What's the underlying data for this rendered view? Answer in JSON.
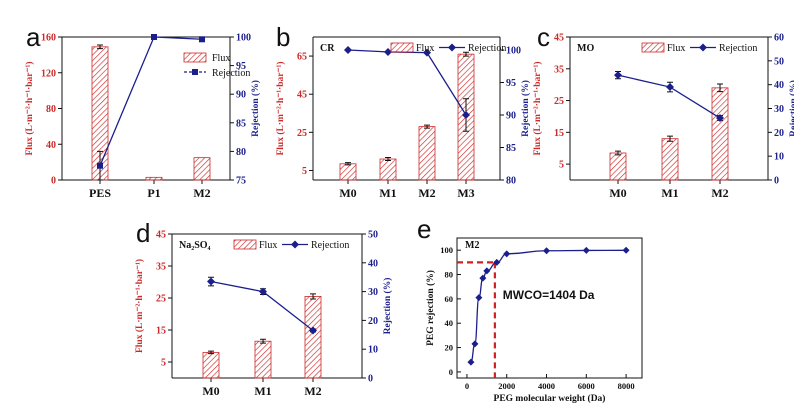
{
  "colors": {
    "flux": "#cc2a2a",
    "rejection": "#1b1f8c",
    "axis": "#111111",
    "guide": "#cc2222"
  },
  "chart_data": [
    {
      "panel": "a",
      "type": "bar+line",
      "tag": "",
      "categories": [
        "PES",
        "P1",
        "M2"
      ],
      "series": [
        {
          "name": "Flux",
          "axis": "left",
          "values": [
            149,
            3,
            25
          ],
          "errors": [
            2,
            0,
            0
          ]
        },
        {
          "name": "Rejection",
          "axis": "right",
          "values": [
            77.5,
            100,
            99.6
          ],
          "errors": [
            2.5,
            0,
            0
          ]
        }
      ],
      "ylabel_left": "Flux (L·m⁻²·h⁻¹·bar⁻¹)",
      "ylabel_right": "Rejection (%)",
      "ylim_left": [
        0,
        160
      ],
      "yticks_left": [
        "0",
        "40",
        "80",
        "120",
        "160"
      ],
      "ytick_values_left": [
        0,
        40,
        80,
        120,
        160
      ],
      "ylim_right": [
        75,
        100
      ],
      "yticks_right": [
        "75",
        "80",
        "85",
        "90",
        "95",
        "100"
      ],
      "ytick_values_right": [
        75,
        80,
        85,
        90,
        95,
        100
      ],
      "legend": {
        "flux": "Flux",
        "rejection": "Rejection"
      }
    },
    {
      "panel": "b",
      "type": "bar+line",
      "tag": "CR",
      "categories": [
        "M0",
        "M1",
        "M2",
        "M3"
      ],
      "series": [
        {
          "name": "Flux",
          "axis": "left",
          "values": [
            8.5,
            11,
            28,
            66
          ],
          "errors": [
            0.6,
            0.8,
            0.8,
            1.0
          ]
        },
        {
          "name": "Rejection",
          "axis": "right",
          "values": [
            100,
            99.7,
            99.6,
            90
          ],
          "errors": [
            0,
            0,
            0,
            2.5
          ]
        }
      ],
      "ylabel_left": "Flux (L·m⁻²·h⁻¹·bar⁻¹)",
      "ylabel_right": "Rejection (%)",
      "ylim_left": [
        0,
        75
      ],
      "yticks_left": [
        "5",
        "25",
        "45",
        "65"
      ],
      "ytick_values_left": [
        5,
        25,
        45,
        65
      ],
      "ylim_right": [
        80,
        102
      ],
      "yticks_right": [
        "80",
        "85",
        "90",
        "95",
        "100"
      ],
      "ytick_values_right": [
        80,
        85,
        90,
        95,
        100
      ],
      "legend": {
        "flux": "Flux",
        "rejection": "Rejection"
      }
    },
    {
      "panel": "c",
      "type": "bar+line",
      "tag": "MO",
      "categories": [
        "M0",
        "M1",
        "M2"
      ],
      "series": [
        {
          "name": "Flux",
          "axis": "left",
          "values": [
            8.5,
            13,
            29
          ],
          "errors": [
            0.6,
            0.8,
            1.2
          ]
        },
        {
          "name": "Rejection",
          "axis": "right",
          "values": [
            44,
            39,
            26
          ],
          "errors": [
            1.5,
            2,
            1
          ]
        }
      ],
      "ylabel_left": "Flux (L·m⁻²·h⁻¹·bar⁻¹)",
      "ylabel_right": "Rejection (%)",
      "ylim_left": [
        0,
        45
      ],
      "yticks_left": [
        "5",
        "15",
        "25",
        "35",
        "45"
      ],
      "ytick_values_left": [
        5,
        15,
        25,
        35,
        45
      ],
      "ylim_right": [
        0,
        60
      ],
      "yticks_right": [
        "0",
        "10",
        "20",
        "30",
        "40",
        "50",
        "60"
      ],
      "ytick_values_right": [
        0,
        10,
        20,
        30,
        40,
        50,
        60
      ],
      "legend": {
        "flux": "Flux",
        "rejection": "Rejection"
      }
    },
    {
      "panel": "d",
      "type": "bar+line",
      "tag": "Na₂SO₄",
      "categories": [
        "M0",
        "M1",
        "M2"
      ],
      "series": [
        {
          "name": "Flux",
          "axis": "left",
          "values": [
            8,
            11.5,
            25.5
          ],
          "errors": [
            0.4,
            0.6,
            0.8
          ]
        },
        {
          "name": "Rejection",
          "axis": "right",
          "values": [
            33.5,
            30,
            16.5
          ],
          "errors": [
            1.5,
            1,
            0.5
          ]
        }
      ],
      "ylabel_left": "Flux (L·m⁻²·h⁻¹·bar⁻¹)",
      "ylabel_right": "Rejection (%)",
      "ylim_left": [
        0,
        45
      ],
      "yticks_left": [
        "5",
        "15",
        "25",
        "35",
        "45"
      ],
      "ytick_values_left": [
        5,
        15,
        25,
        35,
        45
      ],
      "ylim_right": [
        0,
        50
      ],
      "yticks_right": [
        "0",
        "10",
        "20",
        "30",
        "40",
        "50"
      ],
      "ytick_values_right": [
        0,
        10,
        20,
        30,
        40,
        50
      ],
      "legend": {
        "flux": "Flux",
        "rejection": "Rejection"
      }
    },
    {
      "panel": "e",
      "type": "line",
      "tag": "M2",
      "series": [
        {
          "name": "PEG rejection",
          "x": [
            200,
            400,
            600,
            800,
            1000,
            1500,
            2000,
            4000,
            6000,
            8000
          ],
          "y": [
            8,
            23,
            61,
            77,
            83,
            90,
            97,
            99.5,
            99.8,
            99.9
          ]
        }
      ],
      "xlabel": "PEG molecular weight (Da)",
      "ylabel": "PEG rejection (%)",
      "xlim": [
        -500,
        8800
      ],
      "xticks": [
        "0",
        "2000",
        "4000",
        "6000",
        "8000"
      ],
      "xtick_values": [
        0,
        2000,
        4000,
        6000,
        8000
      ],
      "ylim": [
        -5,
        110
      ],
      "yticks": [
        "0",
        "20",
        "40",
        "60",
        "80",
        "100"
      ],
      "ytick_values": [
        0,
        20,
        40,
        60,
        80,
        100
      ],
      "annotation": "MWCO=1404 Da",
      "mwco_x": 1404,
      "mwco_y": 90
    }
  ]
}
